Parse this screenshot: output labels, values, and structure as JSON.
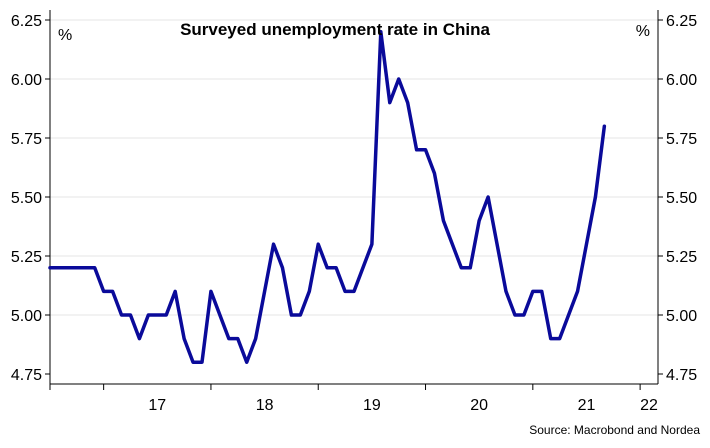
{
  "chart_data": {
    "type": "line",
    "title": "Surveyed unemployment rate in China",
    "unit_left": "%",
    "unit_right": "%",
    "source": "Source: Macrobond and Nordea",
    "ylim": [
      4.75,
      6.25
    ],
    "yticks": [
      4.75,
      5.0,
      5.25,
      5.5,
      5.75,
      6.0,
      6.25
    ],
    "ytick_labels": [
      "4.75",
      "5.00",
      "5.25",
      "5.50",
      "5.75",
      "6.00",
      "6.25"
    ],
    "xlim": [
      "2016-07",
      "2022-03"
    ],
    "xtick_labels": [
      "17",
      "18",
      "19",
      "20",
      "21",
      "22"
    ],
    "xtick_label_positions": [
      "2017-07",
      "2018-07",
      "2019-07",
      "2020-07",
      "2021-07",
      "2022-02"
    ],
    "xtick_marks": [
      "2016-07",
      "2017-01",
      "2018-01",
      "2019-01",
      "2020-01",
      "2021-01",
      "2022-01"
    ],
    "grid": true,
    "line_color": "#0a0a9a",
    "grid_color": "#e6e6e6",
    "series": [
      {
        "x": [
          "2016-07",
          "2016-08",
          "2016-09",
          "2016-10",
          "2016-11",
          "2016-12",
          "2017-01",
          "2017-02",
          "2017-03",
          "2017-04",
          "2017-05",
          "2017-06",
          "2017-07",
          "2017-08",
          "2017-09",
          "2017-10",
          "2017-11",
          "2017-12",
          "2018-01",
          "2018-02",
          "2018-03",
          "2018-04",
          "2018-05",
          "2018-06",
          "2018-07",
          "2018-08",
          "2018-09",
          "2018-10",
          "2018-11",
          "2018-12",
          "2019-01",
          "2019-02",
          "2019-03",
          "2019-04",
          "2019-05",
          "2019-06",
          "2019-07",
          "2019-08",
          "2019-09",
          "2019-10",
          "2019-11",
          "2019-12",
          "2020-01",
          "2020-02",
          "2020-03",
          "2020-04",
          "2020-05",
          "2020-06",
          "2020-07",
          "2020-08",
          "2020-09",
          "2020-10",
          "2020-11",
          "2020-12",
          "2021-01",
          "2021-02",
          "2021-03",
          "2021-04",
          "2021-05",
          "2021-06",
          "2021-07",
          "2021-08",
          "2021-09",
          "2021-10",
          "2021-11",
          "2021-12",
          "2022-01",
          "2022-02",
          "2022-03"
        ],
        "values": [
          5.2,
          5.2,
          5.2,
          5.2,
          5.2,
          5.2,
          5.1,
          5.1,
          5.0,
          5.0,
          4.9,
          5.0,
          5.0,
          5.0,
          5.1,
          4.9,
          4.8,
          4.8,
          5.1,
          5.0,
          4.9,
          4.9,
          4.8,
          4.9,
          5.1,
          5.3,
          5.2,
          5.0,
          5.0,
          5.1,
          5.3,
          5.2,
          5.2,
          5.1,
          5.1,
          5.2,
          5.3,
          6.2,
          5.9,
          6.0,
          5.9,
          5.7,
          5.7,
          5.6,
          5.4,
          5.3,
          5.2,
          5.2,
          5.4,
          5.5,
          5.3,
          5.1,
          5.0,
          5.0,
          5.1,
          5.1,
          4.9,
          4.9,
          5.0,
          5.1,
          5.3,
          5.5,
          5.8,
          null,
          null,
          null,
          null,
          null,
          null
        ]
      }
    ]
  }
}
